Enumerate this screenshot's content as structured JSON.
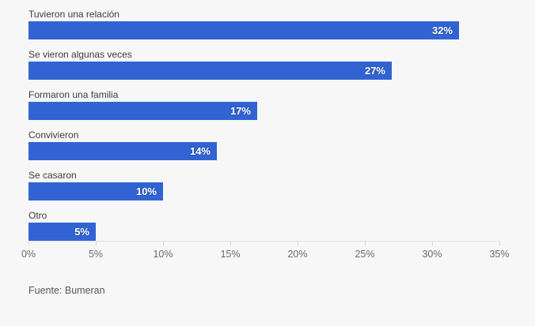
{
  "chart_data": {
    "type": "bar",
    "orientation": "horizontal",
    "title": "",
    "categories": [
      "Tuvieron una relación",
      "Se vieron algunas veces",
      "Formaron una familia",
      "Convivieron",
      "Se casaron",
      "Otro"
    ],
    "values": [
      32,
      27,
      17,
      14,
      10,
      5
    ],
    "value_labels": [
      "32%",
      "27%",
      "17%",
      "14%",
      "10%",
      "5%"
    ],
    "xlim": [
      0,
      35
    ],
    "x_ticks": [
      0,
      5,
      10,
      15,
      20,
      25,
      30,
      35
    ],
    "x_tick_labels": [
      "0%",
      "5%",
      "10%",
      "15%",
      "20%",
      "25%",
      "30%",
      "35%"
    ],
    "grid": false,
    "legend": null,
    "bar_color": "#3164d2",
    "source": "Fuente: Bumeran"
  },
  "colors": {
    "background": "#f7f7f7",
    "bar": "#3164d2",
    "value_label_text": "#ffffff",
    "category_label_text": "#3d3d3d",
    "axis_line": "#e2e2e2",
    "tick_label_text": "#6b6b6b",
    "source_text": "#565656"
  }
}
